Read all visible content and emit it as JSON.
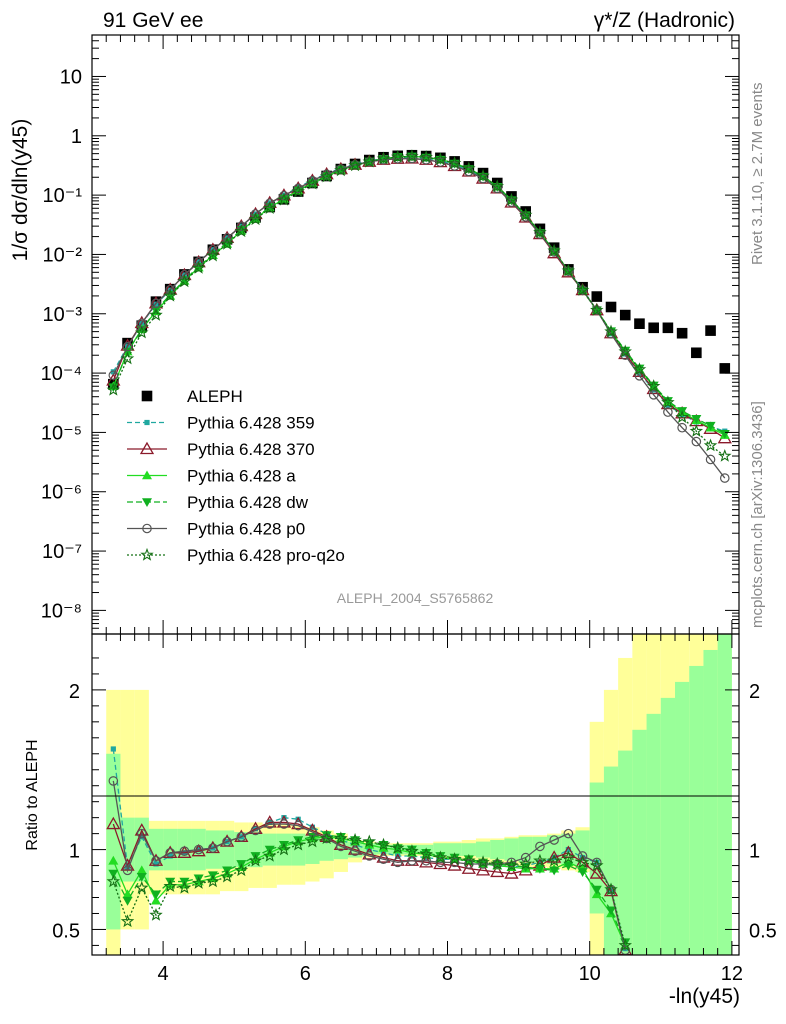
{
  "header": {
    "left_title": "91 GeV ee",
    "right_title": "γ*/Z (Hadronic)"
  },
  "side_text": {
    "rivet": "Rivet 3.1.10, ≥ 2.7M events",
    "mcplots": "mcplots.cern.ch [arXiv:1306.3436]"
  },
  "watermark": "ALEPH_2004_S5765862",
  "chart_data": [
    {
      "type": "scatter",
      "panel": "main",
      "ylabel": "1/σ  dσ/dln(y45)",
      "yscale": "log",
      "xlim": [
        3.0,
        12.1
      ],
      "ylim": [
        4e-09,
        50
      ],
      "y_ticks": [
        {
          "v": 1e-08,
          "label": "10⁻⁸"
        },
        {
          "v": 1e-07,
          "label": "10⁻⁷"
        },
        {
          "v": 1e-06,
          "label": "10⁻⁶"
        },
        {
          "v": 1e-05,
          "label": "10⁻⁵"
        },
        {
          "v": 0.0001,
          "label": "10⁻⁴"
        },
        {
          "v": 0.001,
          "label": "10⁻³"
        },
        {
          "v": 0.01,
          "label": "10⁻²"
        },
        {
          "v": 0.1,
          "label": "10⁻¹"
        },
        {
          "v": 1,
          "label": "1"
        },
        {
          "v": 10,
          "label": "10"
        }
      ],
      "x": [
        3.3,
        3.5,
        3.7,
        3.9,
        4.1,
        4.3,
        4.5,
        4.7,
        4.9,
        5.1,
        5.3,
        5.5,
        5.7,
        5.9,
        6.1,
        6.3,
        6.5,
        6.7,
        6.9,
        7.1,
        7.3,
        7.5,
        7.7,
        7.9,
        8.1,
        8.3,
        8.5,
        8.7,
        8.9,
        9.1,
        9.3,
        9.5,
        9.7,
        9.9,
        10.1,
        10.3,
        10.5,
        10.7,
        10.9,
        11.1,
        11.3,
        11.5,
        11.7,
        11.9
      ],
      "legend": [
        {
          "label": "ALEPH",
          "key": "aleph"
        },
        {
          "label": "Pythia 6.428 359",
          "key": "p359"
        },
        {
          "label": "Pythia 6.428 370",
          "key": "p370"
        },
        {
          "label": "Pythia 6.428 a",
          "key": "pa"
        },
        {
          "label": "Pythia 6.428 dw",
          "key": "pdw"
        },
        {
          "label": "Pythia 6.428 p0",
          "key": "pp0"
        },
        {
          "label": "Pythia 6.428 pro-q2o",
          "key": "pq2o"
        }
      ],
      "series": [
        {
          "key": "aleph",
          "name": "ALEPH",
          "marker": "square",
          "color": "#000000",
          "values": [
            6.5e-05,
            0.00032,
            0.00063,
            0.0016,
            0.0026,
            0.0046,
            0.0075,
            0.012,
            0.018,
            0.028,
            0.042,
            0.063,
            0.085,
            0.115,
            0.16,
            0.21,
            0.275,
            0.335,
            0.39,
            0.435,
            0.46,
            0.47,
            0.455,
            0.425,
            0.37,
            0.305,
            0.235,
            0.16,
            0.095,
            0.053,
            0.027,
            0.013,
            0.0056,
            0.0028,
            0.00195,
            0.0013,
            0.00095,
            0.00068,
            0.00058,
            0.00058,
            0.00047,
            0.00022,
            0.00052,
            0.00012
          ]
        },
        {
          "key": "p359",
          "name": "Pythia 6.428 359",
          "marker": "square-small",
          "color": "#20a8a0",
          "dash": "5,3",
          "values": [
            0.000105,
            0.000285,
            0.00068,
            0.00145,
            0.0025,
            0.0045,
            0.0075,
            0.012,
            0.019,
            0.03,
            0.048,
            0.074,
            0.1,
            0.135,
            0.18,
            0.23,
            0.285,
            0.335,
            0.38,
            0.41,
            0.43,
            0.435,
            0.41,
            0.38,
            0.325,
            0.265,
            0.2,
            0.135,
            0.08,
            0.045,
            0.023,
            0.011,
            0.0053,
            0.0026,
            0.00115,
            0.00046,
            0.00021,
            0.0001,
            5.2e-05,
            2.9e-05,
            2e-05,
            1.5e-05,
            1.25e-05,
            1.05e-05
          ]
        },
        {
          "key": "p370",
          "name": "Pythia 6.428 370",
          "marker": "triangle-open",
          "color": "#8b1a2b",
          "dash": "",
          "values": [
            7.5e-05,
            0.00029,
            0.0007,
            0.0015,
            0.00255,
            0.0045,
            0.0074,
            0.012,
            0.019,
            0.03,
            0.048,
            0.074,
            0.099,
            0.13,
            0.175,
            0.225,
            0.275,
            0.325,
            0.365,
            0.395,
            0.41,
            0.415,
            0.395,
            0.36,
            0.31,
            0.25,
            0.19,
            0.13,
            0.075,
            0.042,
            0.022,
            0.0105,
            0.005,
            0.0025,
            0.00115,
            0.00047,
            0.00021,
            0.000105,
            5.4e-05,
            3e-05,
            2.1e-05,
            1.55e-05,
            1.15e-05,
            8e-06
          ]
        },
        {
          "key": "pa",
          "name": "Pythia 6.428 a",
          "marker": "triangle",
          "color": "#22dd22",
          "dash": "",
          "values": [
            6e-05,
            0.00023,
            0.00055,
            0.0011,
            0.002,
            0.0036,
            0.006,
            0.0097,
            0.015,
            0.025,
            0.04,
            0.062,
            0.086,
            0.12,
            0.16,
            0.21,
            0.265,
            0.315,
            0.365,
            0.41,
            0.44,
            0.45,
            0.435,
            0.4,
            0.345,
            0.28,
            0.21,
            0.14,
            0.083,
            0.046,
            0.0235,
            0.0115,
            0.0053,
            0.0025,
            0.00115,
            0.0005,
            0.00023,
            0.000115,
            6e-05,
            3.3e-05,
            2.2e-05,
            1.6e-05,
            1.2e-05,
            9e-06
          ]
        },
        {
          "key": "pdw",
          "name": "Pythia 6.428 dw",
          "marker": "triangle-down",
          "color": "#10b020",
          "dash": "6,3",
          "values": [
            5.8e-05,
            0.00023,
            0.00054,
            0.00115,
            0.0021,
            0.0037,
            0.0062,
            0.01,
            0.016,
            0.026,
            0.041,
            0.063,
            0.088,
            0.12,
            0.16,
            0.21,
            0.27,
            0.32,
            0.37,
            0.41,
            0.44,
            0.45,
            0.43,
            0.395,
            0.34,
            0.275,
            0.205,
            0.138,
            0.082,
            0.046,
            0.023,
            0.0112,
            0.0052,
            0.00245,
            0.00115,
            0.00051,
            0.00024,
            0.00012,
            6.2e-05,
            3.4e-05,
            2.3e-05,
            1.7e-05,
            1.3e-05,
            9.5e-06
          ]
        },
        {
          "key": "pp0",
          "name": "Pythia 6.428 p0",
          "marker": "circle-open",
          "color": "#555555",
          "dash": "",
          "values": [
            9.2e-05,
            0.00028,
            0.00069,
            0.0015,
            0.00255,
            0.00455,
            0.0075,
            0.012,
            0.019,
            0.03,
            0.048,
            0.073,
            0.098,
            0.13,
            0.175,
            0.225,
            0.275,
            0.325,
            0.365,
            0.395,
            0.41,
            0.415,
            0.395,
            0.36,
            0.31,
            0.25,
            0.19,
            0.13,
            0.076,
            0.043,
            0.022,
            0.011,
            0.0052,
            0.0025,
            0.00115,
            0.00046,
            0.0002,
            9e-05,
            4.3e-05,
            2.2e-05,
            1.2e-05,
            7e-06,
            3.5e-06,
            1.7e-06
          ]
        },
        {
          "key": "pq2o",
          "name": "Pythia 6.428 pro-q2o",
          "marker": "star",
          "color": "#157015",
          "dash": "2,2",
          "values": [
            5.2e-05,
            0.000175,
            0.00048,
            0.00095,
            0.002,
            0.0035,
            0.0059,
            0.0095,
            0.015,
            0.0245,
            0.039,
            0.06,
            0.083,
            0.115,
            0.155,
            0.205,
            0.26,
            0.315,
            0.365,
            0.41,
            0.44,
            0.45,
            0.435,
            0.4,
            0.345,
            0.28,
            0.21,
            0.14,
            0.083,
            0.046,
            0.0235,
            0.0115,
            0.0053,
            0.0025,
            0.00115,
            0.0005,
            0.00023,
            0.000115,
            6e-05,
            3.2e-05,
            1.8e-05,
            1.05e-05,
            6e-06,
            4e-06
          ]
        }
      ]
    },
    {
      "type": "scatter",
      "panel": "ratio",
      "xlabel": "-ln(y45)",
      "ylabel": "Ratio to ALEPH",
      "yscale": "linear",
      "xlim": [
        3.0,
        12.1
      ],
      "ylim": [
        0.34,
        2.35
      ],
      "x_ticks": [
        {
          "v": 4,
          "label": "4"
        },
        {
          "v": 6,
          "label": "6"
        },
        {
          "v": 8,
          "label": "8"
        },
        {
          "v": 10,
          "label": "10"
        },
        {
          "v": 12,
          "label": "12"
        }
      ],
      "y_ticks": [
        {
          "v": 0.5,
          "label": "0.5"
        },
        {
          "v": 1,
          "label": "1"
        },
        {
          "v": 2,
          "label": "2"
        }
      ],
      "x": [
        3.3,
        3.5,
        3.7,
        3.9,
        4.1,
        4.3,
        4.5,
        4.7,
        4.9,
        5.1,
        5.3,
        5.5,
        5.7,
        5.9,
        6.1,
        6.3,
        6.5,
        6.7,
        6.9,
        7.1,
        7.3,
        7.5,
        7.7,
        7.9,
        8.1,
        8.3,
        8.5,
        8.7,
        8.9,
        9.1,
        9.3,
        9.5,
        9.7,
        9.9,
        10.1,
        10.3,
        10.5
      ],
      "bands": {
        "edges": [
          3.2,
          3.4,
          3.6,
          3.8,
          4.0,
          4.2,
          4.4,
          4.6,
          4.8,
          5.0,
          5.2,
          5.4,
          5.6,
          5.8,
          6.0,
          6.2,
          6.4,
          6.6,
          6.8,
          7.0,
          7.2,
          7.4,
          7.6,
          7.8,
          8.0,
          8.2,
          8.4,
          8.6,
          8.8,
          9.0,
          9.2,
          9.4,
          9.6,
          9.8,
          10.0,
          10.2,
          10.4,
          10.6,
          10.8,
          11.0,
          11.2,
          11.4,
          11.6,
          11.8,
          12.0
        ],
        "stat_lo": [
          0.5,
          0.8,
          0.8,
          0.87,
          0.87,
          0.87,
          0.87,
          0.88,
          0.88,
          0.89,
          0.89,
          0.9,
          0.9,
          0.9,
          0.91,
          0.93,
          0.94,
          0.95,
          0.96,
          0.97,
          0.97,
          0.97,
          0.97,
          0.96,
          0.96,
          0.96,
          0.95,
          0.94,
          0.93,
          0.92,
          0.92,
          0.91,
          0.9,
          0.88,
          0.6,
          0.34,
          0.34,
          0.34,
          0.34,
          0.34,
          0.34,
          0.34,
          0.34,
          0.34
        ],
        "stat_hi": [
          1.6,
          1.2,
          1.2,
          1.13,
          1.13,
          1.13,
          1.13,
          1.12,
          1.12,
          1.11,
          1.11,
          1.1,
          1.1,
          1.1,
          1.09,
          1.07,
          1.06,
          1.05,
          1.04,
          1.03,
          1.03,
          1.03,
          1.03,
          1.04,
          1.04,
          1.04,
          1.05,
          1.06,
          1.07,
          1.08,
          1.08,
          1.09,
          1.1,
          1.12,
          1.42,
          1.52,
          1.62,
          1.75,
          1.85,
          1.95,
          2.05,
          2.15,
          2.25,
          2.35
        ],
        "tot_lo": [
          0.34,
          0.5,
          0.5,
          0.72,
          0.72,
          0.72,
          0.72,
          0.72,
          0.74,
          0.74,
          0.76,
          0.76,
          0.78,
          0.78,
          0.8,
          0.82,
          0.86,
          0.92,
          0.95,
          0.96,
          0.96,
          0.96,
          0.96,
          0.95,
          0.94,
          0.93,
          0.92,
          0.91,
          0.9,
          0.89,
          0.89,
          0.88,
          0.87,
          0.86,
          0.3,
          0.3,
          0.3,
          0.3,
          0.3,
          0.3,
          0.3,
          0.3,
          0.3,
          0.3
        ],
        "tot_hi": [
          2.0,
          2.0,
          2.0,
          1.18,
          1.18,
          1.18,
          1.18,
          1.18,
          1.18,
          1.17,
          1.17,
          1.16,
          1.16,
          1.15,
          1.14,
          1.12,
          1.1,
          1.06,
          1.05,
          1.04,
          1.04,
          1.04,
          1.04,
          1.05,
          1.05,
          1.06,
          1.07,
          1.07,
          1.08,
          1.09,
          1.09,
          1.1,
          1.12,
          1.14,
          1.8,
          2.0,
          2.2,
          2.4,
          2.4,
          2.4,
          2.4,
          2.4,
          2.4,
          2.4
        ]
      },
      "series": [
        {
          "key": "p359",
          "values": [
            1.63,
            0.89,
            1.08,
            0.91,
            0.96,
            0.98,
            1.0,
            1.01,
            1.05,
            1.08,
            1.13,
            1.17,
            1.2,
            1.19,
            1.14,
            1.1,
            1.06,
            1.03,
            1.0,
            0.98,
            0.96,
            0.96,
            0.95,
            0.94,
            0.94,
            0.93,
            0.91,
            0.9,
            0.89,
            0.9,
            0.92,
            0.95,
            1.0,
            0.95,
            0.92,
            0.75,
            0.38
          ]
        },
        {
          "key": "p370",
          "values": [
            1.16,
            0.9,
            1.12,
            0.93,
            0.98,
            0.98,
            0.99,
            1.01,
            1.05,
            1.08,
            1.13,
            1.17,
            1.17,
            1.16,
            1.12,
            1.08,
            1.03,
            1.0,
            0.97,
            0.95,
            0.93,
            0.93,
            0.92,
            0.91,
            0.9,
            0.88,
            0.87,
            0.86,
            0.85,
            0.87,
            0.9,
            0.95,
            0.98,
            0.92,
            0.85,
            0.74,
            0.37
          ]
        },
        {
          "key": "pa",
          "values": [
            0.93,
            0.72,
            0.87,
            0.68,
            0.78,
            0.78,
            0.8,
            0.82,
            0.85,
            0.89,
            0.94,
            0.98,
            1.02,
            1.05,
            1.07,
            1.08,
            1.07,
            1.05,
            1.03,
            1.01,
            1.0,
            0.98,
            0.97,
            0.95,
            0.94,
            0.93,
            0.91,
            0.9,
            0.89,
            0.88,
            0.88,
            0.88,
            0.92,
            0.88,
            0.72,
            0.6,
            0.4
          ]
        },
        {
          "key": "pdw",
          "values": [
            0.85,
            0.68,
            0.83,
            0.72,
            0.8,
            0.8,
            0.82,
            0.84,
            0.87,
            0.91,
            0.96,
            1.0,
            1.03,
            1.06,
            1.08,
            1.09,
            1.08,
            1.06,
            1.04,
            1.03,
            1.01,
            1.0,
            0.98,
            0.96,
            0.95,
            0.94,
            0.92,
            0.91,
            0.9,
            0.89,
            0.88,
            0.87,
            0.9,
            0.86,
            0.75,
            0.62,
            0.42
          ]
        },
        {
          "key": "pp0",
          "values": [
            1.43,
            0.87,
            1.1,
            0.93,
            0.98,
            0.99,
            1.0,
            1.01,
            1.05,
            1.08,
            1.12,
            1.16,
            1.16,
            1.15,
            1.11,
            1.07,
            1.02,
            0.99,
            0.96,
            0.94,
            0.92,
            0.93,
            0.93,
            0.92,
            0.92,
            0.91,
            0.91,
            0.91,
            0.92,
            0.95,
            1.02,
            1.06,
            1.1,
            0.96,
            0.92,
            0.75,
            0.37
          ]
        },
        {
          "key": "pq2o",
          "values": [
            0.8,
            0.55,
            0.76,
            0.59,
            0.77,
            0.76,
            0.79,
            0.8,
            0.83,
            0.87,
            0.93,
            0.96,
            1.0,
            1.03,
            1.05,
            1.07,
            1.07,
            1.06,
            1.05,
            1.03,
            1.01,
            0.99,
            0.97,
            0.95,
            0.94,
            0.93,
            0.92,
            0.91,
            0.9,
            0.91,
            0.93,
            0.93,
            0.95,
            0.92,
            0.9,
            0.75,
            0.4
          ]
        }
      ]
    }
  ]
}
